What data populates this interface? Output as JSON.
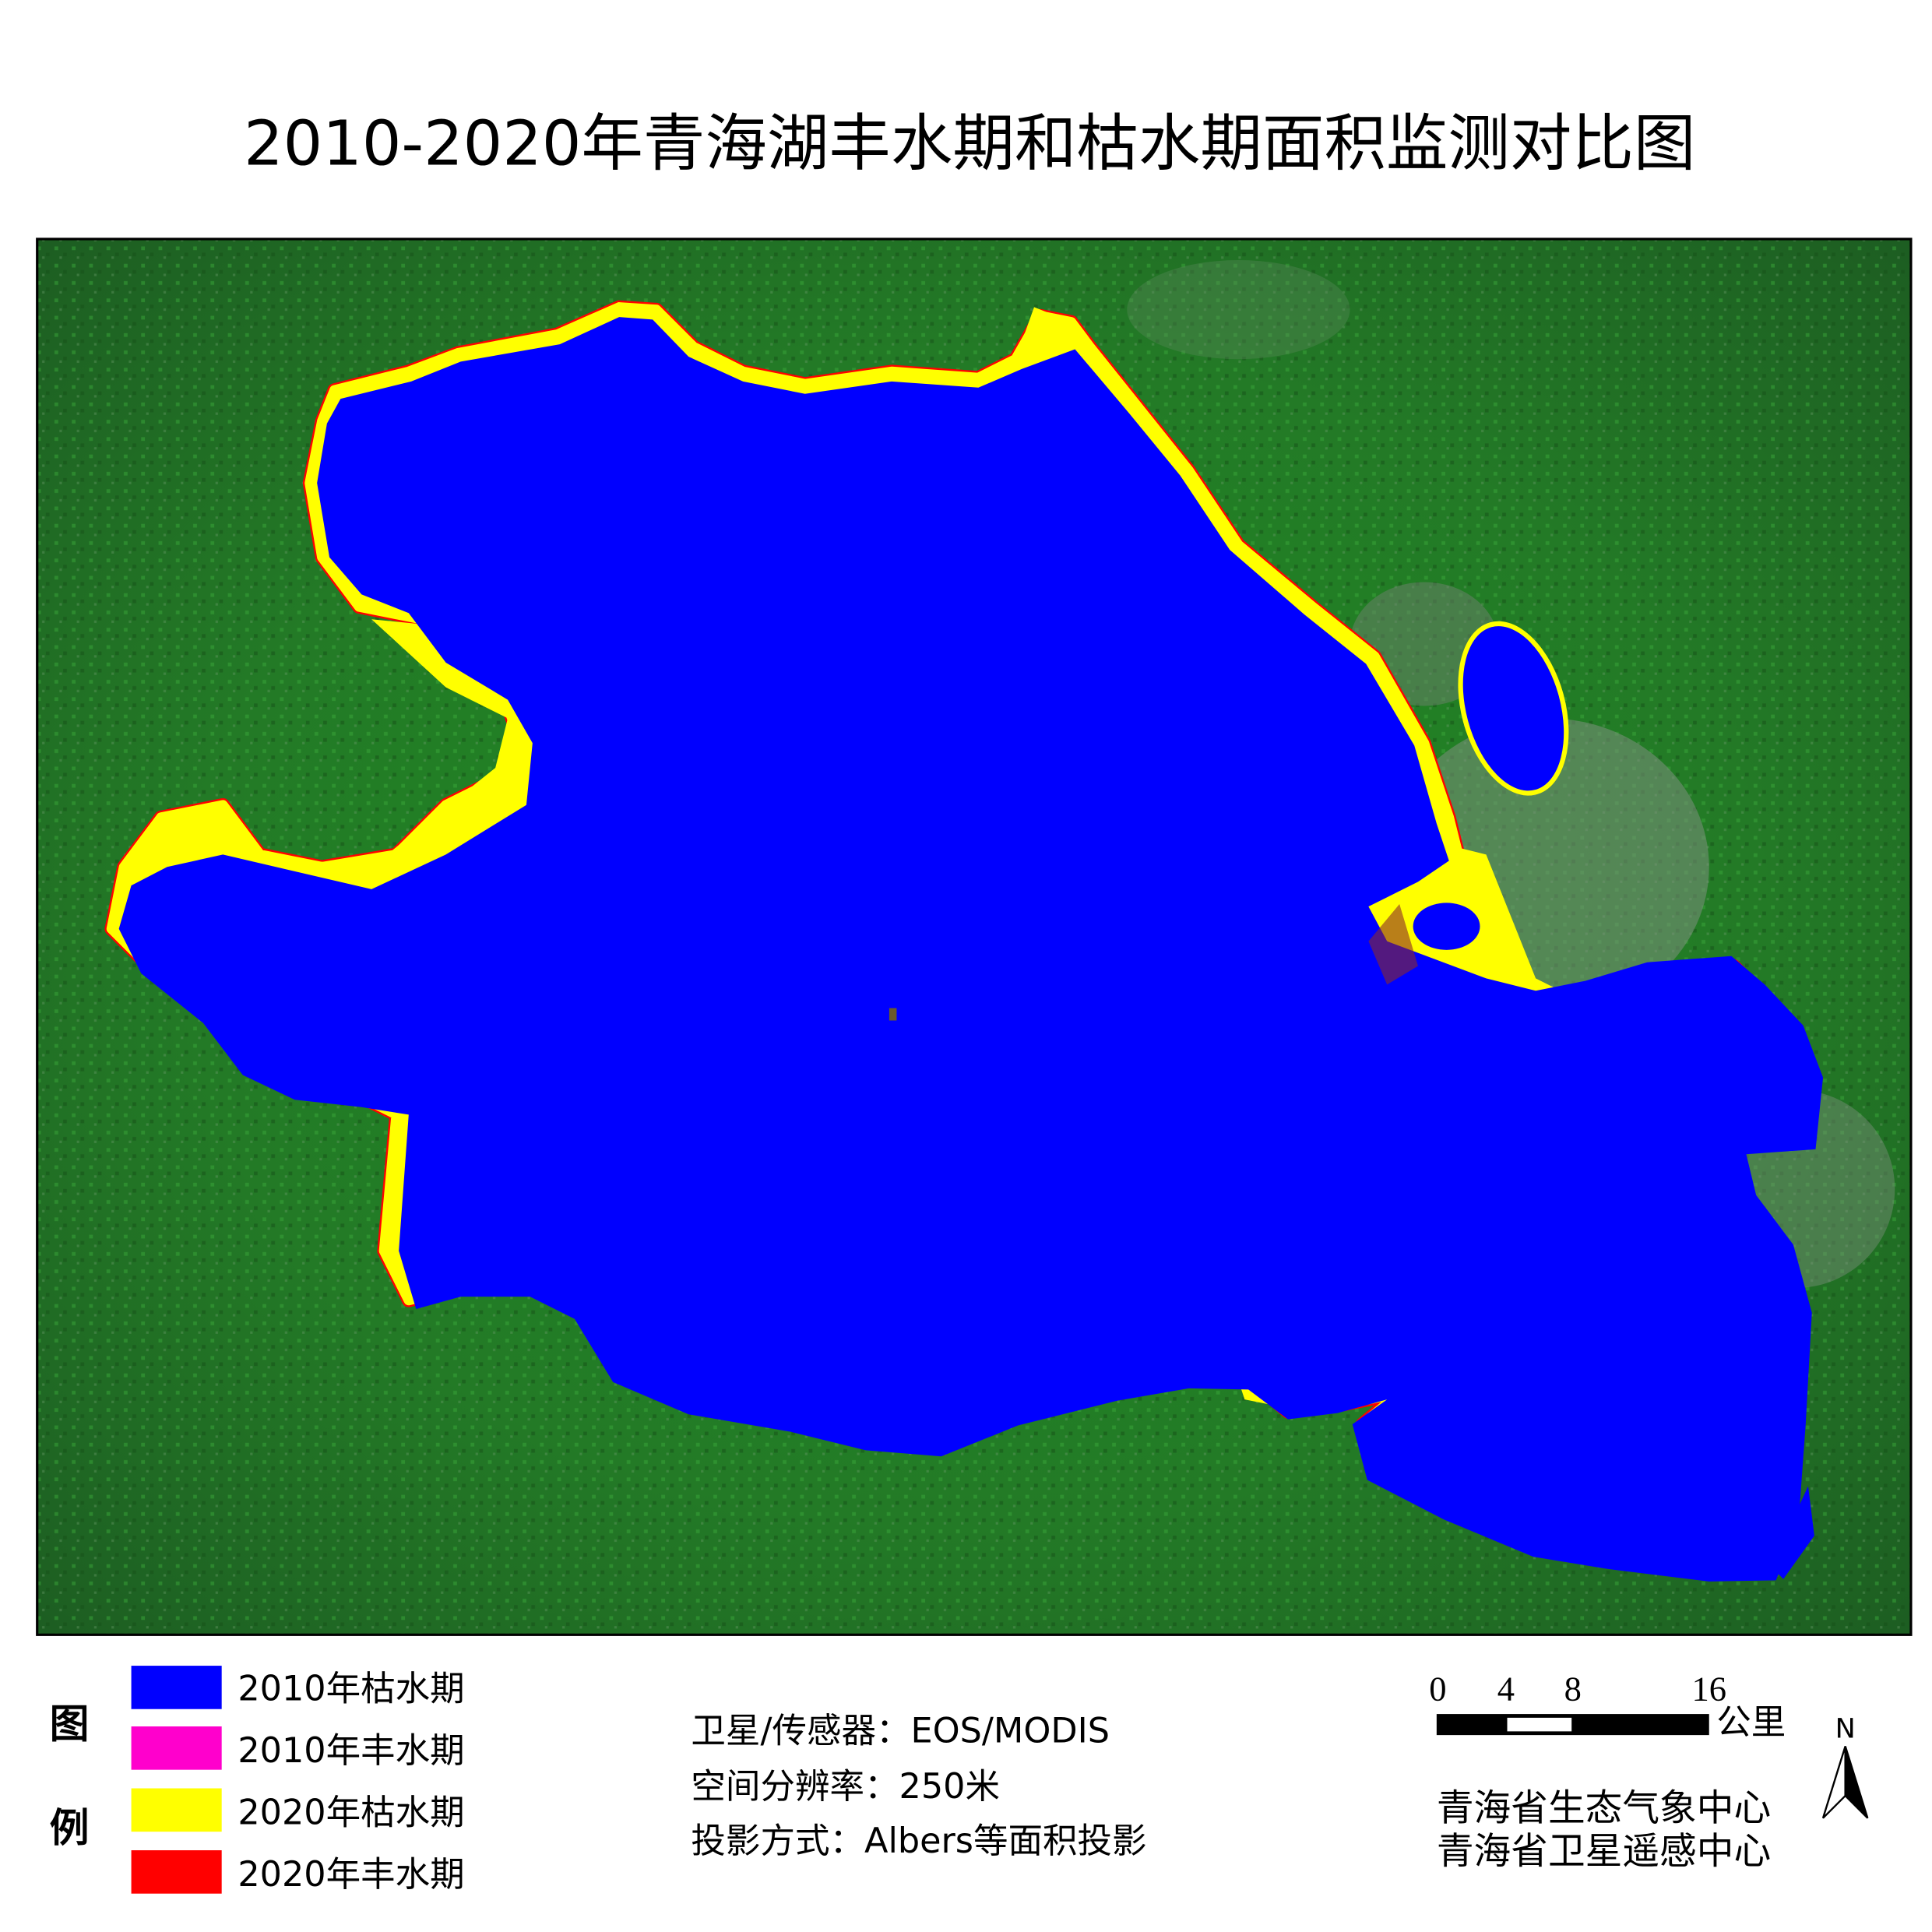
{
  "title": "2010-2020年青海湖丰水期和枯水期面积监测对比图",
  "legend": {
    "heading_top": "图",
    "heading_bottom": "例",
    "items": [
      {
        "label": "2010年枯水期",
        "color": "#0000FF"
      },
      {
        "label": "2010年丰水期",
        "color": "#FF00CC"
      },
      {
        "label": "2020年枯水期",
        "color": "#FFFF00"
      },
      {
        "label": "2020年丰水期",
        "color": "#FF0000"
      }
    ]
  },
  "info": {
    "sensor": "卫星/传感器：EOS/MODIS",
    "resolution": "空间分辨率：250米",
    "projection": "投影方式：Albers等面积投影"
  },
  "scale_bar": {
    "ticks": [
      "0",
      "4",
      "8",
      "16"
    ],
    "unit": "公里"
  },
  "north_arrow": {
    "label": "N"
  },
  "credits": [
    "青海省生态气象中心",
    "青海省卫星遥感中心"
  ],
  "colors": {
    "land": "#2E8B2E",
    "frame": "#000000"
  }
}
